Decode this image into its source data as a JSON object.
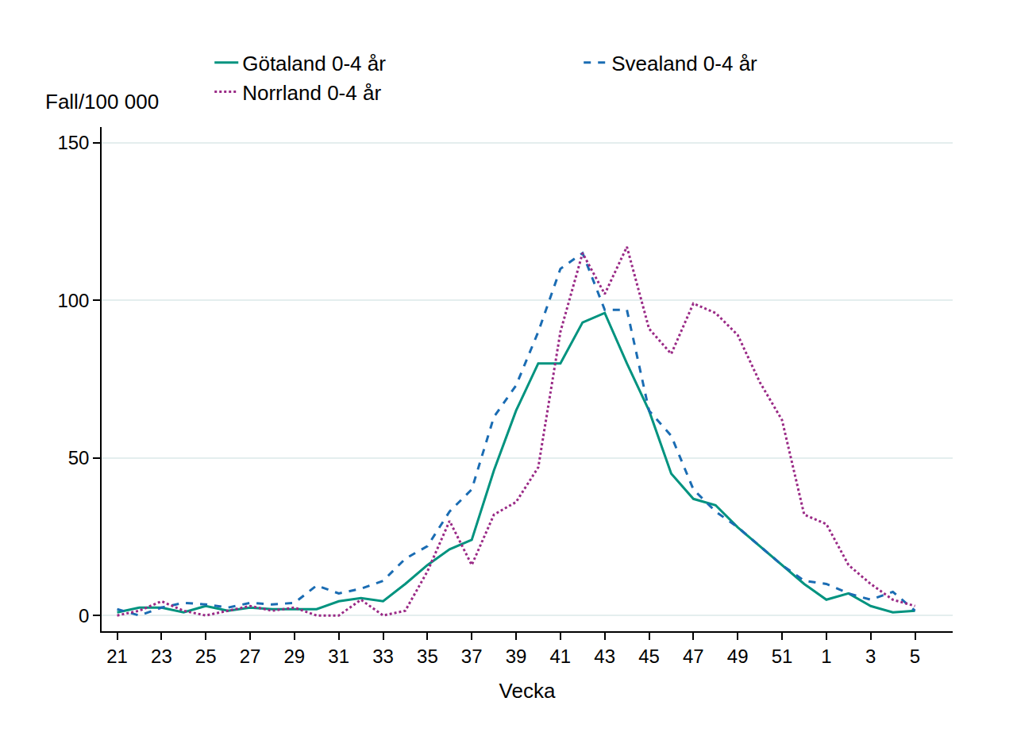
{
  "chart_data": {
    "type": "line",
    "x_label": "Vecka",
    "y_label": "Fall/100 000",
    "categories": [
      "21",
      null,
      "23",
      null,
      "25",
      null,
      "27",
      null,
      "29",
      null,
      "31",
      null,
      "33",
      null,
      "35",
      null,
      "37",
      null,
      "39",
      null,
      "41",
      null,
      "43",
      null,
      "45",
      null,
      "47",
      null,
      "49",
      null,
      "51",
      null,
      "1",
      null,
      "3",
      null,
      "5"
    ],
    "xlim": [
      -0.7,
      37.7
    ],
    "ylim": [
      -5,
      155
    ],
    "yticks": [
      0,
      50,
      100,
      150
    ],
    "grid": true,
    "legend": "top",
    "series": [
      {
        "name": "Götaland 0-4 år",
        "color": "#00937f",
        "line_style": "solid",
        "values": [
          1,
          2.5,
          2.5,
          1,
          3,
          1.5,
          2.5,
          2,
          2,
          2,
          4.5,
          5.5,
          4.5,
          10,
          16,
          21,
          24,
          46,
          65,
          80,
          80,
          93,
          96,
          80,
          65,
          45,
          37,
          35,
          28,
          22,
          16,
          10,
          5,
          7,
          3,
          1,
          1.5
        ]
      },
      {
        "name": "Svealand 0-4 år",
        "color": "#1a6cb3",
        "line_style": "dash",
        "values": [
          2,
          0,
          2.5,
          4,
          3.5,
          2.5,
          4,
          3.5,
          4,
          9.5,
          7,
          8.5,
          11,
          18,
          22,
          33,
          40,
          63,
          73,
          90,
          110,
          115,
          97,
          97,
          65,
          57,
          40,
          33,
          28,
          22,
          16,
          11,
          10,
          7,
          5,
          7.5,
          1.5
        ]
      },
      {
        "name": "Norrland 0-4 år",
        "color": "#9a2a86",
        "line_style": "dot",
        "values": [
          0,
          1.5,
          4.5,
          1.5,
          0,
          1.5,
          3,
          1.5,
          2.5,
          0,
          0,
          5,
          0,
          1.5,
          14,
          30,
          16,
          32,
          36,
          47,
          90,
          115,
          102,
          117,
          91,
          83,
          99,
          96,
          89,
          74,
          62,
          32,
          29,
          16,
          10,
          5,
          3
        ]
      }
    ]
  }
}
